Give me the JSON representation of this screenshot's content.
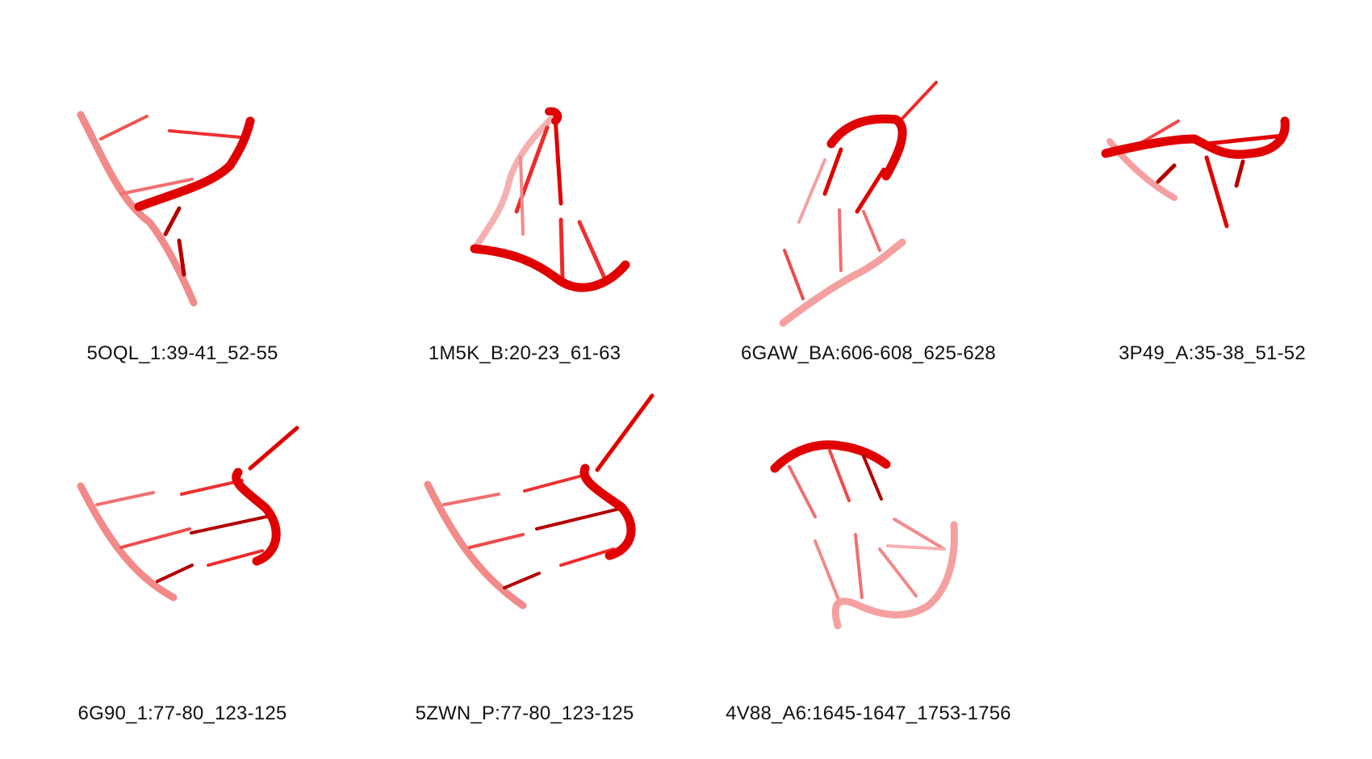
{
  "figure": {
    "background": "#ffffff",
    "colors": {
      "front": "#e00000",
      "mid": "#ee2a2a",
      "back": "#f28a8a",
      "dark": "#b30000"
    },
    "structures": [
      {
        "label": "5OQL_1:39-41_52-55"
      },
      {
        "label": "1M5K_B:20-23_61-63"
      },
      {
        "label": "6GAW_BA:606-608_625-628"
      },
      {
        "label": "3P49_A:35-38_51-52"
      },
      {
        "label": "6G90_1:77-80_123-125"
      },
      {
        "label": "5ZWN_P:77-80_123-125"
      },
      {
        "label": "4V88_A6:1645-1647_1753-1756"
      }
    ]
  }
}
